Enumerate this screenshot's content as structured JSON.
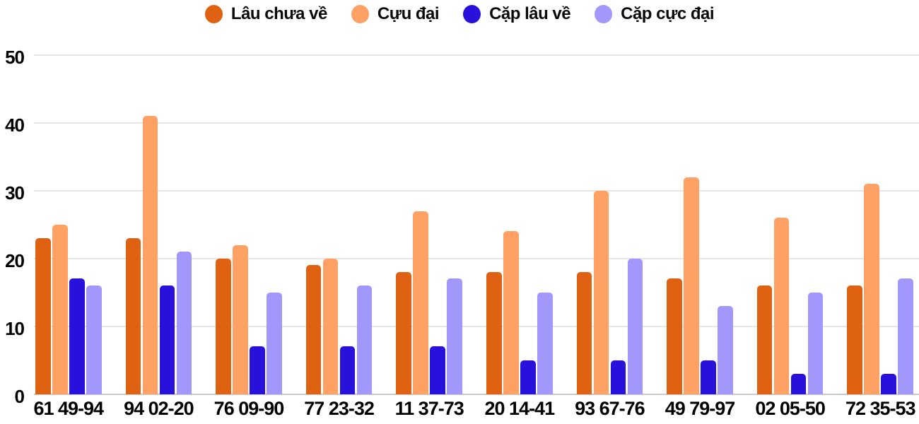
{
  "chart_data": {
    "type": "bar",
    "title": "",
    "xlabel": "",
    "ylabel": "",
    "ylim": [
      0,
      50
    ],
    "yticks": [
      0,
      10,
      20,
      30,
      40,
      50
    ],
    "grid": true,
    "legend_position": "top",
    "categories": [
      "61 49-94",
      "94 02-20",
      "76 09-90",
      "77 23-32",
      "11 37-73",
      "20 14-41",
      "93 67-76",
      "49 79-97",
      "02 05-50",
      "72 35-53"
    ],
    "series": [
      {
        "name": "Lâu chưa về",
        "color": "#DF6212",
        "values": [
          23,
          23,
          20,
          19,
          18,
          18,
          18,
          17,
          16,
          16
        ]
      },
      {
        "name": "Cựu đại",
        "color": "#FFA165",
        "values": [
          25,
          41,
          22,
          20,
          27,
          24,
          30,
          32,
          26,
          31
        ]
      },
      {
        "name": "Cặp lâu về",
        "color": "#2911DC",
        "values": [
          17,
          16,
          7,
          7,
          7,
          5,
          5,
          5,
          3,
          3
        ]
      },
      {
        "name": "Cặp cực đại",
        "color": "#A298FC",
        "values": [
          16,
          21,
          15,
          16,
          17,
          15,
          20,
          13,
          15,
          17
        ]
      }
    ]
  },
  "colors": {
    "gridline": "#E6E6E6",
    "axis_line": "#C9C9C9",
    "text": "#000000",
    "background": "#FFFFFF"
  }
}
